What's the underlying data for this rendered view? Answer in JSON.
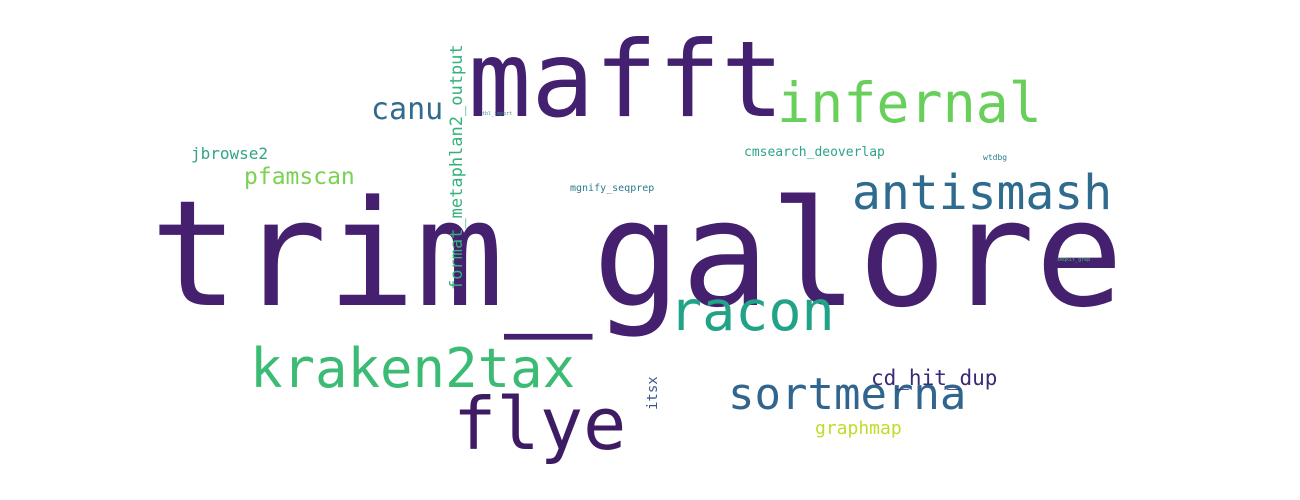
{
  "words": {
    "trim_galore": {
      "text": "trim_galore",
      "color": "#45206f"
    },
    "mafft": {
      "text": "mafft",
      "color": "#442170"
    },
    "infernal": {
      "text": "infernal",
      "color": "#68cf5a"
    },
    "antismash": {
      "text": "antismash",
      "color": "#2f6b8e"
    },
    "racon": {
      "text": "racon",
      "color": "#20a386"
    },
    "kraken2tax": {
      "text": "kraken2tax",
      "color": "#3cbb75"
    },
    "flye": {
      "text": "flye",
      "color": "#3e1c63"
    },
    "sortmerna": {
      "text": "sortmerna",
      "color": "#32658e"
    },
    "canu": {
      "text": "canu",
      "color": "#32698d"
    },
    "pfamscan": {
      "text": "pfamscan",
      "color": "#7bd151"
    },
    "jbrowse2": {
      "text": "jbrowse2",
      "color": "#30a586"
    },
    "cd_hit_dup": {
      "text": "cd_hit_dup",
      "color": "#3b2a75"
    },
    "graphmap": {
      "text": "graphmap",
      "color": "#bfdc29"
    },
    "cmsearch_deoverlap": {
      "text": "cmsearch_deoverlap",
      "color": "#2ea28a"
    },
    "mgnify_seqprep": {
      "text": "mgnify_seqprep",
      "color": "#2c7a8e"
    },
    "atdbg": {
      "text": "wtdbg",
      "color": "#2d7d8f"
    },
    "itsx": {
      "text": "itsx",
      "color": "#3a5a8c"
    },
    "format_metaphlan2_output": {
      "text": "format_metaphlan2_output",
      "color": "#35b27a"
    },
    "tiny_small": {
      "text": "tbl_import",
      "color": "#3b8c8c"
    },
    "tiny_right": {
      "text": "seqkit_grep",
      "color": "#46c17a"
    }
  },
  "background_color": "#ffffff"
}
